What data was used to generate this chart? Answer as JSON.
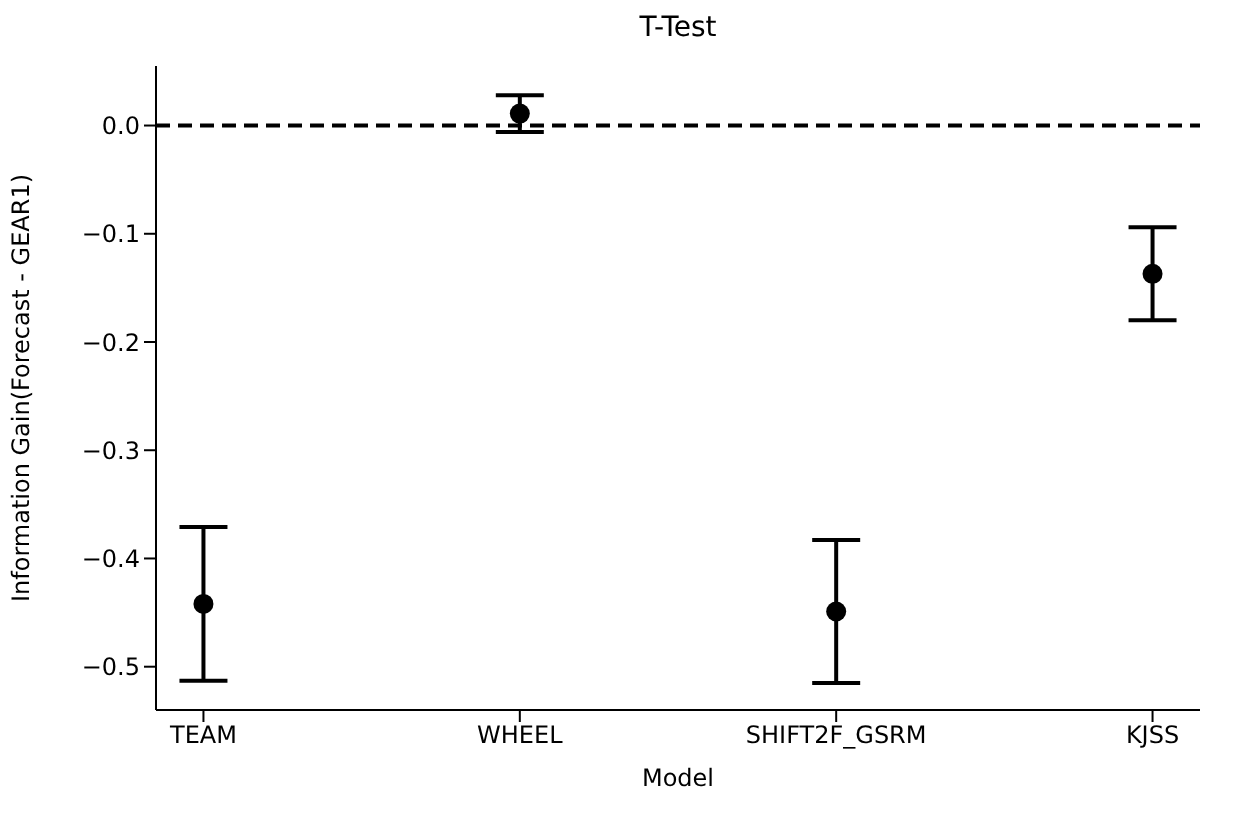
{
  "chart_data": {
    "type": "scatter",
    "title": "T-Test",
    "xlabel": "Model",
    "ylabel": "Information Gain(Forecast - GEAR1)",
    "categories": [
      "TEAM",
      "WHEEL",
      "SHIFT2F_GSRM",
      "KJSS"
    ],
    "values": [
      -0.442,
      0.011,
      -0.449,
      -0.137
    ],
    "errors": [
      0.071,
      0.017,
      0.066,
      0.043
    ],
    "color": "#000000",
    "marker": "circle",
    "ylim": [
      -0.54,
      0.055
    ],
    "yticks": [
      {
        "value": 0,
        "label": "0.0"
      },
      {
        "value": -0.1,
        "label": "−0.1"
      },
      {
        "value": -0.2,
        "label": "−0.2"
      },
      {
        "value": -0.3,
        "label": "−0.3"
      },
      {
        "value": -0.4,
        "label": "−0.4"
      },
      {
        "value": -0.5,
        "label": "−0.5"
      }
    ],
    "ref_lines": [
      {
        "axis": "y",
        "value": 0,
        "color": "#000000",
        "line_style": "dashed"
      }
    ]
  }
}
